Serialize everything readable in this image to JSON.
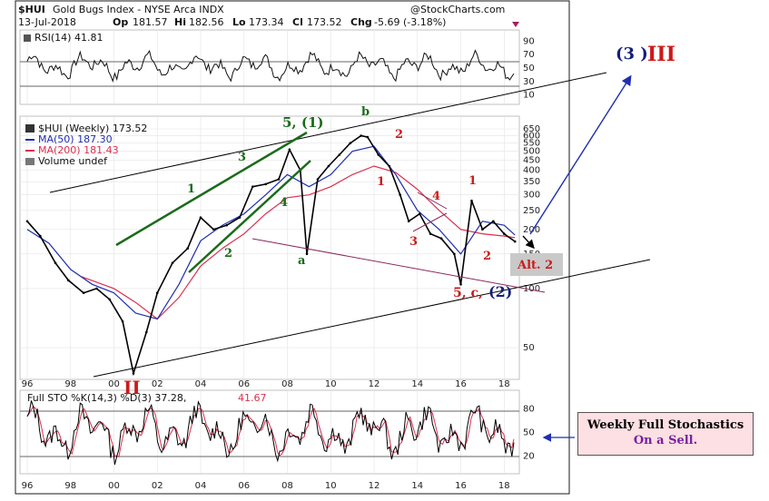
{
  "header": {
    "ticker": "$HUI",
    "name": "Gold Bugs Index - NYSE Arca INDX",
    "source": "@StockCharts.com",
    "date": "13-Jul-2018",
    "op_label": "Op",
    "op": "181.57",
    "hi_label": "Hi",
    "hi": "182.56",
    "lo_label": "Lo",
    "lo": "173.34",
    "cl_label": "Cl",
    "cl": "173.52",
    "chg_label": "Chg",
    "chg": "-5.69 (-3.18%)"
  },
  "colors": {
    "price": "#000000",
    "ma50": "#1f2fb0",
    "ma200": "#d9304f",
    "wave_green": "#1a6b1a",
    "wave_red": "#cc1a1a",
    "wave_navy": "#14207a",
    "channel": "#1a6b1a",
    "trend": "#8a2a5a",
    "arrow_blue": "#1f2fb0"
  },
  "rsi": {
    "label": "RSI(14) 41.81",
    "ticks": [
      "90",
      "70",
      "50",
      "30",
      "10"
    ]
  },
  "legend": {
    "title": "$HUI (Weekly) 173.52",
    "ma50": "MA(50) 187.30",
    "ma200": "MA(200) 181.43",
    "volume": "Volume undef"
  },
  "price_axis": {
    "ticks": [
      "650",
      "600",
      "550",
      "500",
      "450",
      "400",
      "350",
      "300",
      "250",
      "200",
      "150",
      "100",
      "50"
    ]
  },
  "stoch": {
    "label_main": "Full STO %K(14,3) %D(3) 37.28,",
    "label_d": "41.67",
    "ticks": [
      "80",
      "50",
      "20"
    ]
  },
  "x_axis": {
    "labels": [
      "96",
      "98",
      "00",
      "02",
      "04",
      "06",
      "08",
      "10",
      "12",
      "14",
      "16",
      "18"
    ]
  },
  "annotations": {
    "primary_three_num": "(3 )",
    "primary_three_roman": "III",
    "primary_two": "II",
    "g5_1": "5, (1)",
    "g1": "1",
    "g2": "2",
    "g3": "3",
    "g4": "4",
    "ga": "a",
    "gb": "b",
    "r1a": "1",
    "r2a": "2",
    "r3": "3",
    "r4": "4",
    "r1b": "1",
    "r2b": "2",
    "five_c_prefix": "5, c,",
    "five_c_suffix": "(2)",
    "alt2": "Alt. 2"
  },
  "note_box": {
    "line1": "Weekly Full Stochastics",
    "line2": "On a Sell."
  },
  "chart_data": {
    "type": "line",
    "title": "$HUI Gold Bugs Index - NYSE Arca INDX",
    "xlabel": "",
    "ylabel": "",
    "ylim": [
      40,
      700
    ],
    "log_scale": true,
    "series": [
      {
        "name": "$HUI (Weekly)",
        "x": [
          1996.0,
          1996.6,
          1997.3,
          1997.9,
          1998.6,
          1999.2,
          1999.8,
          2000.4,
          2000.9,
          2001.5,
          2002.0,
          2002.7,
          2003.4,
          2004.0,
          2004.6,
          2005.2,
          2005.8,
          2006.4,
          2007.0,
          2007.6,
          2008.1,
          2008.6,
          2008.9,
          2009.4,
          2009.9,
          2010.4,
          2010.9,
          2011.4,
          2011.7,
          2012.2,
          2012.7,
          2013.2,
          2013.6,
          2014.1,
          2014.6,
          2015.1,
          2015.7,
          2016.0,
          2016.5,
          2017.0,
          2017.5,
          2018.0,
          2018.5
        ],
        "values": [
          220,
          185,
          135,
          110,
          95,
          100,
          88,
          68,
          37,
          60,
          95,
          135,
          160,
          230,
          200,
          210,
          230,
          330,
          340,
          360,
          510,
          400,
          150,
          360,
          420,
          480,
          550,
          600,
          590,
          480,
          420,
          300,
          220,
          240,
          190,
          180,
          150,
          105,
          280,
          200,
          220,
          190,
          173.52
        ]
      },
      {
        "name": "MA(50)",
        "x": [
          1996.0,
          1997.0,
          1998.0,
          1999.0,
          2000.0,
          2001.0,
          2002.0,
          2003.0,
          2004.0,
          2005.0,
          2006.0,
          2007.0,
          2008.0,
          2009.0,
          2010.0,
          2011.0,
          2012.0,
          2013.0,
          2014.0,
          2015.0,
          2016.0,
          2017.0,
          2018.0,
          2018.5
        ],
        "values": [
          200,
          170,
          125,
          105,
          95,
          75,
          70,
          105,
          175,
          210,
          240,
          300,
          380,
          330,
          380,
          500,
          530,
          380,
          250,
          200,
          150,
          220,
          210,
          187.3
        ]
      },
      {
        "name": "MA(200)",
        "x": [
          1998.5,
          2000.0,
          2001.0,
          2002.0,
          2003.0,
          2004.0,
          2005.0,
          2006.0,
          2007.0,
          2008.0,
          2009.0,
          2010.0,
          2011.0,
          2012.0,
          2013.0,
          2014.0,
          2015.0,
          2016.0,
          2017.0,
          2018.0,
          2018.5
        ],
        "values": [
          115,
          100,
          85,
          70,
          90,
          130,
          160,
          190,
          240,
          290,
          300,
          330,
          380,
          420,
          390,
          320,
          250,
          200,
          190,
          185,
          181.43
        ]
      }
    ],
    "rsi_series": {
      "name": "RSI(14)",
      "last": 41.81,
      "ylim": [
        0,
        100
      ],
      "ref_lines": [
        70,
        30
      ]
    },
    "stoch_series": {
      "name": "Full STO %K(14,3) %D(3)",
      "k_last": 37.28,
      "d_last": 41.67,
      "ylim": [
        0,
        100
      ],
      "ref_lines": [
        80,
        20
      ]
    },
    "legend_position": "top-left",
    "grid": true
  }
}
